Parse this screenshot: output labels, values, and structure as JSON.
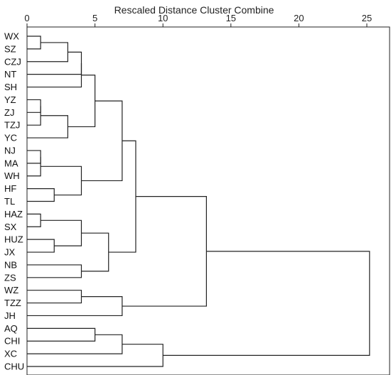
{
  "chart_data": {
    "type": "dendrogram",
    "title": "Rescaled Distance Cluster Combine",
    "xlim": [
      0,
      25
    ],
    "xticks": [
      0,
      5,
      10,
      15,
      20,
      25
    ],
    "leaves": [
      "WX",
      "SZ",
      "CZJ",
      "NT",
      "SH",
      "YZ",
      "ZJ",
      "TZJ",
      "YC",
      "NJ",
      "MA",
      "WH",
      "HF",
      "TL",
      "HAZ",
      "SX",
      "HUZ",
      "JX",
      "NB",
      "ZS",
      "WZ",
      "TZZ",
      "JH",
      "AQ",
      "CHI",
      "XC",
      "CHU"
    ],
    "merges": [
      {
        "id": "m1",
        "a": "WX",
        "b": "SZ",
        "height": 1.0
      },
      {
        "id": "m2",
        "a": "m1",
        "b": "CZJ",
        "height": 3.0
      },
      {
        "id": "m3",
        "a": "m2",
        "b": "NT",
        "height": 4.0
      },
      {
        "id": "m4",
        "a": "m3",
        "b": "SH",
        "height": 4.0
      },
      {
        "id": "m5",
        "a": "YZ",
        "b": "ZJ",
        "height": 1.0
      },
      {
        "id": "m6",
        "a": "m5",
        "b": "TZJ",
        "height": 1.0
      },
      {
        "id": "m7",
        "a": "m6",
        "b": "YC",
        "height": 3.0
      },
      {
        "id": "m8",
        "a": "m4",
        "b": "m7",
        "height": 5.0
      },
      {
        "id": "m9",
        "a": "NJ",
        "b": "MA",
        "height": 1.0
      },
      {
        "id": "m10",
        "a": "m9",
        "b": "WH",
        "height": 1.0
      },
      {
        "id": "m11",
        "a": "HF",
        "b": "TL",
        "height": 2.0
      },
      {
        "id": "m12",
        "a": "m10",
        "b": "m11",
        "height": 4.0
      },
      {
        "id": "m13",
        "a": "m8",
        "b": "m12",
        "height": 7.0
      },
      {
        "id": "m14",
        "a": "HAZ",
        "b": "SX",
        "height": 1.0
      },
      {
        "id": "m15",
        "a": "HUZ",
        "b": "JX",
        "height": 2.0
      },
      {
        "id": "m16",
        "a": "m14",
        "b": "m15",
        "height": 4.0
      },
      {
        "id": "m17",
        "a": "NB",
        "b": "ZS",
        "height": 4.0
      },
      {
        "id": "m18",
        "a": "m16",
        "b": "m17",
        "height": 6.0
      },
      {
        "id": "m19",
        "a": "m13",
        "b": "m18",
        "height": 8.0
      },
      {
        "id": "m20",
        "a": "WZ",
        "b": "TZZ",
        "height": 4.0
      },
      {
        "id": "m21",
        "a": "m20",
        "b": "JH",
        "height": 7.0
      },
      {
        "id": "m22",
        "a": "m19",
        "b": "m21",
        "height": 13.2
      },
      {
        "id": "m23",
        "a": "AQ",
        "b": "CHI",
        "height": 5.0
      },
      {
        "id": "m24",
        "a": "m23",
        "b": "XC",
        "height": 7.0
      },
      {
        "id": "m25",
        "a": "m24",
        "b": "CHU",
        "height": 10.0
      },
      {
        "id": "m26",
        "a": "m22",
        "b": "m25",
        "height": 25.2
      }
    ]
  }
}
